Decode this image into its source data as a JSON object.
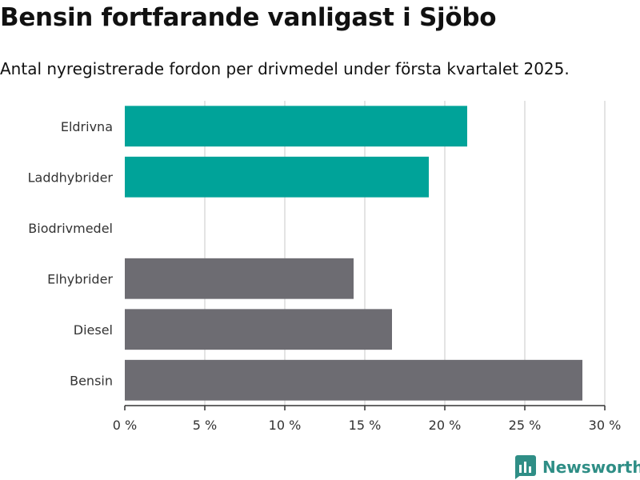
{
  "header": {
    "title": "Bensin fortfarande vanligast i Sjöbo",
    "subtitle": "Antal nyregistrerade fordon per drivmedel under första kvartalet 2025."
  },
  "brand": {
    "name": "Newsworthy",
    "icon": "bar-chart-icon",
    "color": "#2f8e86"
  },
  "chart_data": {
    "type": "bar",
    "orientation": "horizontal",
    "categories": [
      "Eldrivna",
      "Laddhybrider",
      "Biodrivmedel",
      "Elhybrider",
      "Diesel",
      "Bensin"
    ],
    "values": [
      21.4,
      19.0,
      0,
      14.3,
      16.7,
      28.6
    ],
    "colors": [
      "#00a399",
      "#00a399",
      "#00a399",
      "#6d6c72",
      "#6d6c72",
      "#6d6c72"
    ],
    "xlim": [
      0,
      30
    ],
    "xticks": [
      0,
      5,
      10,
      15,
      20,
      25,
      30
    ],
    "xtick_labels": [
      "0 %",
      "5 %",
      "10 %",
      "15 %",
      "20 %",
      "25 %",
      "30 %"
    ],
    "grid": true
  }
}
